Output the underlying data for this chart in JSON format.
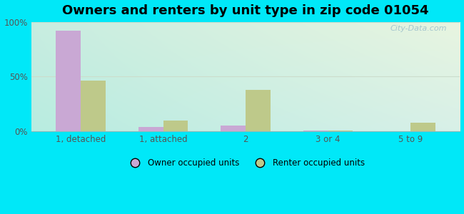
{
  "title": "Owners and renters by unit type in zip code 01054",
  "categories": [
    "1, detached",
    "1, attached",
    "2",
    "3 or 4",
    "5 to 9"
  ],
  "owner_values": [
    92,
    4,
    5,
    0.5,
    0
  ],
  "renter_values": [
    46,
    10,
    38,
    0.5,
    8
  ],
  "owner_color": "#c9a8d4",
  "renter_color": "#bec98a",
  "background_outer": "#00e8f8",
  "grad_top_left": "#c8ede0",
  "grad_top_right": "#e8f5e0",
  "grad_bot_left": "#b8ece0",
  "grad_bot_right": "#d8f0e8",
  "title_fontsize": 13,
  "ylabel_ticks": [
    0,
    50,
    100
  ],
  "ylabel_labels": [
    "0%",
    "50%",
    "100%"
  ],
  "legend_owner": "Owner occupied units",
  "legend_renter": "Renter occupied units",
  "bar_width": 0.3,
  "watermark": "City-Data.com",
  "grid_color": "#ccddcc",
  "tick_color": "#555555"
}
